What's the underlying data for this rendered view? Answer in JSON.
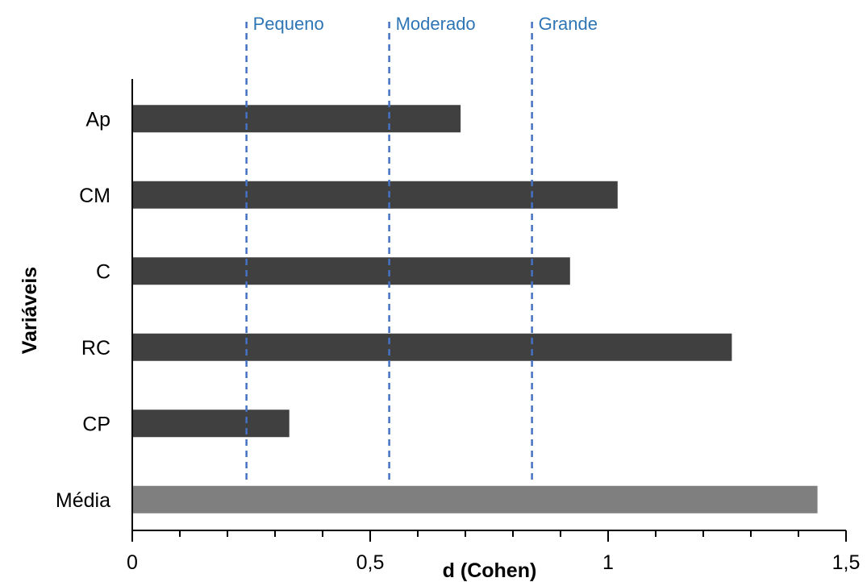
{
  "chart_data": {
    "type": "bar",
    "orientation": "horizontal",
    "xlabel": "d (Cohen)",
    "ylabel": "Variáveis",
    "xlim": [
      0,
      1.5
    ],
    "x_ticks": [
      0,
      0.5,
      1,
      1.5
    ],
    "x_tick_labels": [
      "0",
      "0,5",
      "1",
      "1,5"
    ],
    "x_minor_step": 0.1,
    "grid": false,
    "categories": [
      "Ap",
      "CM",
      "C",
      "RC",
      "CP",
      "Média"
    ],
    "values": [
      0.69,
      1.02,
      0.92,
      1.26,
      0.33,
      1.44
    ],
    "bar_colors": [
      "#404040",
      "#404040",
      "#404040",
      "#404040",
      "#404040",
      "#7f7f7f"
    ],
    "reference_lines": [
      {
        "label": "Pequeno",
        "value": 0.24
      },
      {
        "label": "Moderado",
        "value": 0.54
      },
      {
        "label": "Grande",
        "value": 0.84
      }
    ],
    "reference_line_color": "#4472c4",
    "reference_label_color": "#2e75b6"
  }
}
